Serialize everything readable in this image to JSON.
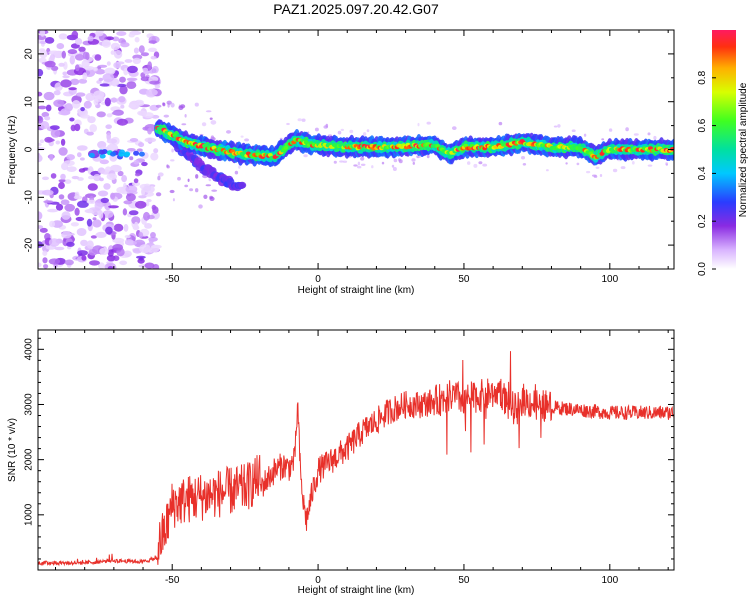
{
  "figure_title": "PAZ1.2025.097.20.42.G07",
  "colors": {
    "snr_line": "#e8302a",
    "spectrogram_low": "#9b30ff",
    "spectrogram_mid": "#00e0c0",
    "spectrogram_high": "#ff1a1a"
  },
  "chart_data": [
    {
      "type": "heatmap",
      "xlabel": "Height of straight line (km)",
      "ylabel": "Frequency (Hz)",
      "xlim": [
        -96,
        122
      ],
      "ylim": [
        -25,
        25
      ],
      "x_ticks": [
        -50,
        0,
        50,
        100
      ],
      "y_ticks": [
        -20,
        -10,
        0,
        10,
        20
      ],
      "noise_region_x": [
        -96,
        -55
      ],
      "ridge": {
        "x": [
          -55,
          -45,
          -35,
          -25,
          -15,
          -8,
          -2,
          10,
          25,
          40,
          45,
          50,
          60,
          70,
          80,
          90,
          95,
          100,
          110,
          122
        ],
        "frequency_hz": [
          4.5,
          1.5,
          0.0,
          -1.0,
          -1.5,
          2.0,
          1.0,
          0.5,
          0.5,
          1.0,
          -1.0,
          0.5,
          0.5,
          1.5,
          0.5,
          0.5,
          -1.5,
          0.0,
          0.0,
          0.0
        ]
      },
      "branch": {
        "x": [
          -50,
          -40,
          -34,
          -26
        ],
        "frequency_hz": [
          1.5,
          -3.5,
          -6.0,
          -8.0
        ]
      },
      "colorbar": {
        "label": "Normalized spectral amplitude",
        "range": [
          0.0,
          1.0
        ],
        "ticks": [
          "0.0",
          "0.2",
          "0.4",
          "0.6",
          "0.8"
        ]
      }
    },
    {
      "type": "line",
      "xlabel": "Height of straight line (km)",
      "ylabel": "SNR (10 * v/v)",
      "xlim": [
        -96,
        122
      ],
      "ylim": [
        0,
        4350
      ],
      "x_ticks": [
        -50,
        0,
        50,
        100
      ],
      "y_ticks": [
        1000,
        2000,
        3000,
        4000
      ],
      "series": [
        {
          "x": [
            -96,
            -80,
            -70,
            -60,
            -55,
            -52,
            -50,
            -45,
            -40,
            -35,
            -30,
            -25,
            -20,
            -18,
            -15,
            -12,
            -10,
            -8,
            -7,
            -6,
            -5,
            -4,
            -2,
            0,
            5,
            10,
            15,
            20,
            25,
            30,
            35,
            40,
            45,
            50,
            55,
            60,
            62,
            65,
            68,
            70,
            72,
            75,
            80,
            90,
            100,
            110,
            122
          ],
          "values": [
            130,
            130,
            170,
            150,
            220,
            600,
            1000,
            1100,
            1150,
            1200,
            1250,
            1300,
            1500,
            1600,
            1800,
            1900,
            1850,
            2000,
            3000,
            1700,
            1200,
            900,
            1400,
            1800,
            2000,
            2200,
            2500,
            2700,
            2900,
            3000,
            3000,
            3050,
            3150,
            3100,
            3150,
            3200,
            3300,
            3000,
            2900,
            3100,
            3050,
            3000,
            2950,
            2900,
            2850,
            2850,
            2850
          ]
        }
      ]
    }
  ]
}
